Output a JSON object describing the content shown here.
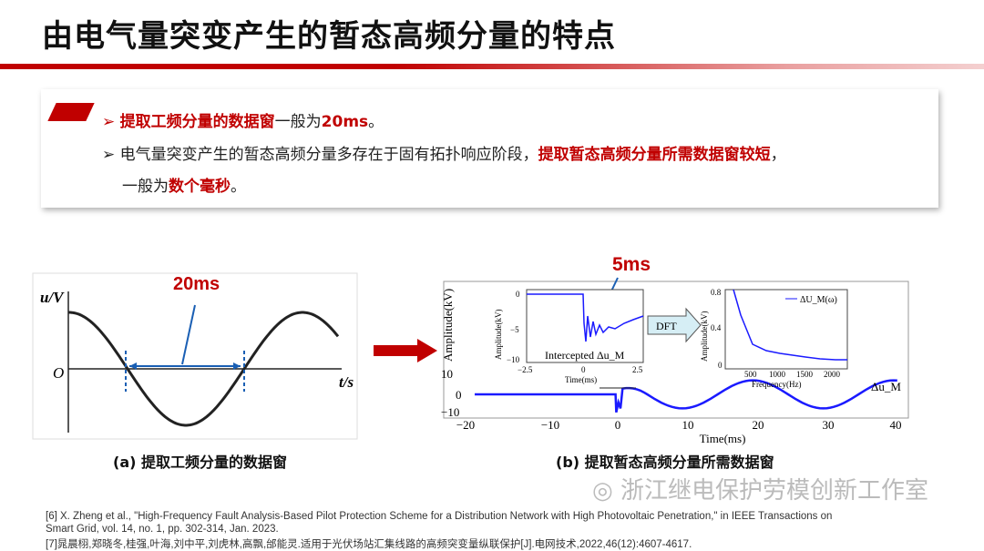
{
  "title": "由电气量突变产生的暂态高频分量的特点",
  "bullets": [
    {
      "marker": "➢",
      "red": "提取工频分量的数据窗",
      "normal": "一般为",
      "red2": "20ms",
      "end": "。"
    },
    {
      "marker": "➢",
      "normal": "电气量突变产生的暂态高频分量多存在于固有拓扑响应阶段，",
      "red": "提取暂态高频分量所需数据窗较短",
      "end": "，"
    },
    {
      "normal": "一般为",
      "red": "数个毫秒",
      "end": "。"
    }
  ],
  "fig_a": {
    "ylabel": "u/V",
    "xlabel": "t/s",
    "origin": "O",
    "window": "20ms",
    "caption": "(a) 提取工频分量的数据窗"
  },
  "fig_b": {
    "window": "5ms",
    "caption": "(b) 提取暂态高频分量所需数据窗",
    "main": {
      "ylabel": "Amplitude(kV)",
      "xlabel": "Time(ms)",
      "yticks": [
        "10",
        "0",
        "−10"
      ],
      "xticks": [
        "−20",
        "−10",
        "0",
        "10",
        "20",
        "30",
        "40"
      ],
      "series": "Δu_M"
    },
    "inset1": {
      "ylabel": "Amplitude(kV)",
      "xlabel": "Time(ms)",
      "yticks": [
        "0",
        "−5",
        "−10"
      ],
      "xticks": [
        "−2.5",
        "0",
        "2.5"
      ],
      "label": "Intercepted Δu_M"
    },
    "dft": "DFT",
    "inset2": {
      "ylabel": "Amplitude(kV)",
      "xlabel": "Frequency(Hz)",
      "yticks": [
        "0.8",
        "0.4",
        "0"
      ],
      "xticks": [
        "500",
        "1000",
        "1500",
        "2000"
      ],
      "legend": "ΔU_M(ω)"
    }
  },
  "refs": [
    "[6] X. Zheng et al., \"High-Frequency Fault Analysis-Based Pilot Protection Scheme for a Distribution Network with High Photovoltaic Penetration,\" in IEEE Transactions on",
    "Smart Grid, vol. 14, no. 1, pp. 302-314, Jan. 2023.",
    "[7]晁晨栩,郑晓冬,桂强,叶海,刘中平,刘虎林,高飘,邰能灵.适用于光伏场站汇集线路的高频突变量纵联保护[J].电网技术,2022,46(12):4607-4617."
  ],
  "watermark": "浙江继电保护劳模创新工作室",
  "colors": {
    "accent": "#c00000",
    "curve": "#1a1aff"
  }
}
